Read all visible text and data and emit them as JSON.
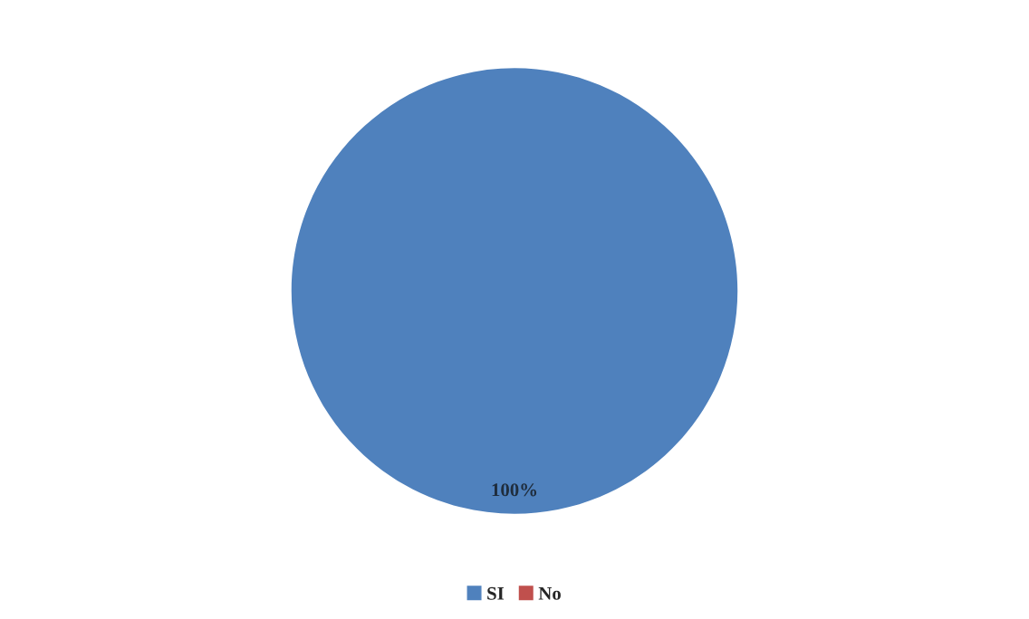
{
  "chart_data": {
    "type": "pie",
    "categories": [
      "SI",
      "No"
    ],
    "values": [
      100,
      0
    ],
    "colors": [
      "#4f81bd",
      "#c0504d"
    ],
    "value_labels": [
      "100%",
      null
    ],
    "legend": "bottom"
  }
}
